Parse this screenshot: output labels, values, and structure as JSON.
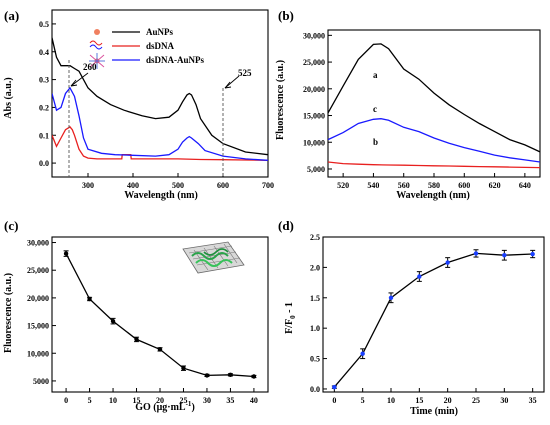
{
  "chart_data": [
    {
      "id": "a",
      "type": "line",
      "panel_label": "(a)",
      "xlabel": "Wavelength (nm)",
      "ylabel": "Abs (a.u.)",
      "xlim": [
        220,
        700
      ],
      "ylim": [
        -0.05,
        0.55
      ],
      "xticks": [
        300,
        400,
        500,
        600,
        700
      ],
      "yticks": [
        0.0,
        0.1,
        0.2,
        0.3,
        0.4,
        0.5
      ],
      "ytick_labels": [
        "0.0",
        "0.1",
        "0.2",
        "0.3",
        "0.4",
        "0.5"
      ],
      "legend_position": "top-center",
      "series": [
        {
          "name": "AuNPs",
          "color": "#000000",
          "x": [
            220,
            230,
            240,
            250,
            260,
            270,
            280,
            290,
            300,
            320,
            350,
            380,
            400,
            420,
            450,
            480,
            500,
            510,
            520,
            525,
            530,
            540,
            550,
            575,
            600,
            650,
            700
          ],
          "y": [
            0.45,
            0.38,
            0.35,
            0.35,
            0.35,
            0.34,
            0.33,
            0.3,
            0.27,
            0.24,
            0.21,
            0.19,
            0.18,
            0.17,
            0.16,
            0.165,
            0.19,
            0.22,
            0.245,
            0.25,
            0.245,
            0.21,
            0.16,
            0.1,
            0.07,
            0.04,
            0.03
          ]
        },
        {
          "name": "dsDNA",
          "color": "#e8201f",
          "x": [
            220,
            230,
            240,
            250,
            260,
            265,
            270,
            280,
            290,
            300,
            320,
            350,
            375,
            376,
            395,
            396,
            420,
            450,
            500,
            550,
            600,
            650,
            700
          ],
          "y": [
            0.1,
            0.06,
            0.09,
            0.12,
            0.13,
            0.12,
            0.1,
            0.05,
            0.025,
            0.018,
            0.015,
            0.015,
            0.015,
            0.03,
            0.03,
            0.015,
            0.015,
            0.015,
            0.015,
            0.013,
            0.012,
            0.011,
            0.01
          ]
        },
        {
          "name": "dsDNA-AuNPs",
          "color": "#1a1aff",
          "x": [
            220,
            230,
            240,
            250,
            260,
            270,
            280,
            290,
            300,
            330,
            360,
            400,
            450,
            480,
            500,
            510,
            520,
            525,
            530,
            545,
            560,
            600,
            650,
            700
          ],
          "y": [
            0.25,
            0.19,
            0.2,
            0.25,
            0.27,
            0.24,
            0.17,
            0.09,
            0.05,
            0.035,
            0.03,
            0.028,
            0.025,
            0.03,
            0.05,
            0.075,
            0.09,
            0.095,
            0.09,
            0.07,
            0.045,
            0.025,
            0.015,
            0.01
          ]
        }
      ],
      "annotations": [
        {
          "text": "260",
          "x": 260,
          "y": 0.29
        },
        {
          "text": "525",
          "x": 525,
          "y": 0.26
        }
      ]
    },
    {
      "id": "b",
      "type": "line",
      "panel_label": "(b)",
      "xlabel": "Wavelength (nm)",
      "ylabel": "Fluorescence (a.u.)",
      "xlim": [
        510,
        650
      ],
      "ylim": [
        3500,
        31000
      ],
      "xticks": [
        520,
        540,
        560,
        580,
        600,
        620,
        640
      ],
      "yticks": [
        5000,
        10000,
        15000,
        20000,
        25000,
        30000
      ],
      "ytick_labels": [
        "5,000",
        "10,000",
        "15,000",
        "20,000",
        "25,000",
        "30,000"
      ],
      "series": [
        {
          "name": "a",
          "color": "#000000",
          "x": [
            510,
            520,
            530,
            540,
            545,
            550,
            560,
            570,
            580,
            590,
            600,
            610,
            620,
            630,
            640,
            650
          ],
          "y": [
            15500,
            20500,
            25500,
            28300,
            28400,
            27500,
            23700,
            21800,
            19200,
            17000,
            15200,
            13500,
            12000,
            10500,
            9500,
            8200
          ]
        },
        {
          "name": "c",
          "color": "#1a1aff",
          "x": [
            510,
            520,
            530,
            540,
            545,
            550,
            560,
            570,
            580,
            590,
            600,
            610,
            620,
            630,
            640,
            650
          ],
          "y": [
            10500,
            11800,
            13500,
            14300,
            14400,
            14100,
            12800,
            12000,
            10800,
            9800,
            9000,
            8300,
            7600,
            7100,
            6700,
            6300
          ]
        },
        {
          "name": "b",
          "color": "#e8201f",
          "x": [
            510,
            520,
            530,
            540,
            550,
            560,
            570,
            580,
            590,
            600,
            610,
            620,
            630,
            640,
            650
          ],
          "y": [
            6300,
            6000,
            5900,
            5800,
            5750,
            5700,
            5650,
            5600,
            5550,
            5500,
            5450,
            5400,
            5350,
            5300,
            5250
          ]
        }
      ],
      "annotations": [
        {
          "text": "a",
          "x": 544,
          "y": 25300
        },
        {
          "text": "c",
          "x": 544,
          "y": 16000
        },
        {
          "text": "b",
          "x": 544,
          "y": 8200
        }
      ]
    },
    {
      "id": "c",
      "type": "line",
      "panel_label": "(c)",
      "xlabel": "GO (μg·mL",
      "xlabel_sup": "-1",
      "xlabel_end": ")",
      "ylabel": "Fluorescence (a.u.)",
      "xlim": [
        -3,
        43
      ],
      "ylim": [
        3000,
        31000
      ],
      "xticks": [
        0,
        5,
        10,
        15,
        20,
        25,
        30,
        35,
        40
      ],
      "yticks": [
        5000,
        10000,
        15000,
        20000,
        25000,
        30000
      ],
      "ytick_labels": [
        "5000",
        "10,000",
        "15,000",
        "20,000",
        "25,000",
        "30,000"
      ],
      "series": [
        {
          "name": "",
          "color": "#000000",
          "x": [
            0,
            5,
            10,
            15,
            20,
            25,
            30,
            35,
            40
          ],
          "y": [
            28000,
            19800,
            15800,
            12500,
            10700,
            7300,
            6000,
            6100,
            5800
          ],
          "err": [
            500,
            300,
            500,
            400,
            300,
            400,
            200,
            200,
            200
          ]
        }
      ]
    },
    {
      "id": "d",
      "type": "line",
      "panel_label": "(d)",
      "xlabel": "Time (min)",
      "ylabel": "F/F",
      "ylabel_sub": "0",
      "ylabel_end": " - 1",
      "xlim": [
        -2,
        37
      ],
      "ylim": [
        -0.05,
        2.5
      ],
      "xticks": [
        0,
        5,
        10,
        15,
        20,
        25,
        30,
        35
      ],
      "yticks": [
        0.0,
        0.5,
        1.0,
        1.5,
        2.0,
        2.5
      ],
      "ytick_labels": [
        "0.0",
        "0.5",
        "1.0",
        "1.5",
        "2.0",
        "2.5"
      ],
      "series": [
        {
          "name": "",
          "color": "#000000",
          "marker_color": "#1a3fff",
          "x": [
            0,
            5,
            10,
            15,
            20,
            25,
            30,
            35
          ],
          "y": [
            0.03,
            0.58,
            1.5,
            1.85,
            2.08,
            2.23,
            2.2,
            2.22
          ],
          "err": [
            0.02,
            0.08,
            0.08,
            0.08,
            0.08,
            0.06,
            0.08,
            0.06
          ]
        }
      ]
    }
  ]
}
